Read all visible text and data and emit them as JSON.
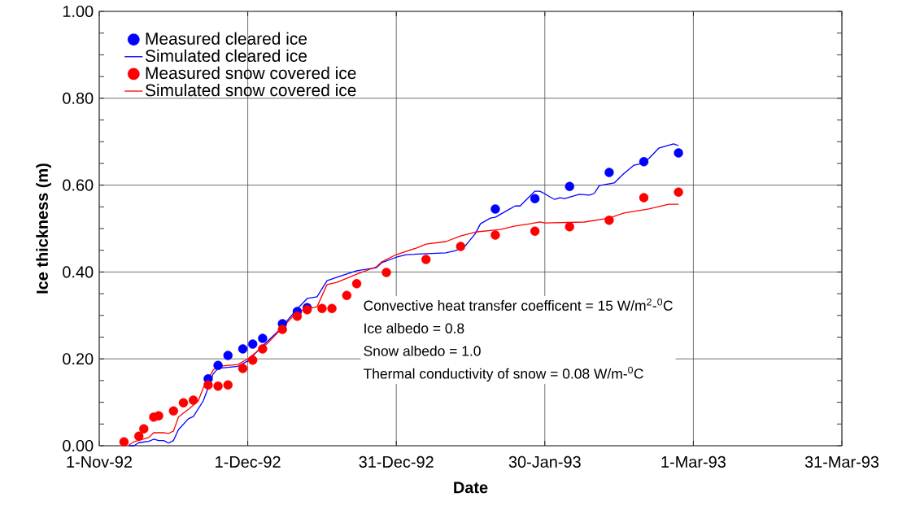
{
  "chart_data": {
    "type": "line",
    "xlabel": "Date",
    "ylabel": "Ice thickness (m)",
    "xlim": [
      "1992-11-01",
      "1993-03-31"
    ],
    "xticks": [
      {
        "value": "1992-11-01",
        "label": "1-Nov-92"
      },
      {
        "value": "1992-12-01",
        "label": "1-Dec-92"
      },
      {
        "value": "1992-12-31",
        "label": "31-Dec-92"
      },
      {
        "value": "1993-01-30",
        "label": "30-Jan-93"
      },
      {
        "value": "1993-03-01",
        "label": "1-Mar-93"
      },
      {
        "value": "1993-03-31",
        "label": "31-Mar-93"
      }
    ],
    "ylim": [
      0,
      1
    ],
    "yticks": [
      {
        "value": 0,
        "label": "0.00"
      },
      {
        "value": 0.05,
        "label": null
      },
      {
        "value": 0.1,
        "label": null
      },
      {
        "value": 0.15,
        "label": null
      },
      {
        "value": 0.2,
        "label": "0.20"
      },
      {
        "value": 0.25,
        "label": null
      },
      {
        "value": 0.3,
        "label": null
      },
      {
        "value": 0.35,
        "label": null
      },
      {
        "value": 0.4,
        "label": "0.40"
      },
      {
        "value": 0.45,
        "label": null
      },
      {
        "value": 0.5,
        "label": null
      },
      {
        "value": 0.55,
        "label": null
      },
      {
        "value": 0.6,
        "label": "0.60"
      },
      {
        "value": 0.65,
        "label": null
      },
      {
        "value": 0.7,
        "label": null
      },
      {
        "value": 0.75,
        "label": null
      },
      {
        "value": 0.8,
        "label": "0.80"
      },
      {
        "value": 0.85,
        "label": null
      },
      {
        "value": 0.9,
        "label": null
      },
      {
        "value": 0.95,
        "label": null
      },
      {
        "value": 1,
        "label": "1.00"
      }
    ],
    "grid": true,
    "legend": "top left",
    "annotations": [
      "Convective heat transfer coefficent = 15 W/m$^{2}$-$^{0}$C",
      "Ice albedo = 0.8",
      "Snow albedo = 1.0",
      "Thermal conductivity of snow = 0.08 W/m-$^{0}$C"
    ],
    "series": [
      {
        "name": "Measured cleared ice",
        "type": "scatter",
        "marker": "circle",
        "color": "#0000ff",
        "x": [
          "1992-11-23",
          "1992-11-25",
          "1992-11-27",
          "1992-11-30",
          "1992-12-02",
          "1992-12-04",
          "1992-12-08",
          "1992-12-11",
          "1992-12-13",
          "1993-01-20",
          "1993-01-28",
          "1993-02-04",
          "1993-02-12",
          "1993-02-19",
          "1993-02-26"
        ],
        "values": [
          0.154,
          0.185,
          0.208,
          0.223,
          0.234,
          0.247,
          0.281,
          0.309,
          0.318,
          0.545,
          0.569,
          0.597,
          0.629,
          0.654,
          0.674
        ]
      },
      {
        "name": "Simulated cleared ice",
        "type": "line",
        "color": "#0000ff",
        "x": [
          "1992-11-07",
          "1992-11-08",
          "1992-11-09",
          "1992-11-11",
          "1992-11-12",
          "1992-11-13",
          "1992-11-14",
          "1992-11-15",
          "1992-11-16",
          "1992-11-17",
          "1992-11-19",
          "1992-11-20",
          "1992-11-22",
          "1992-11-23",
          "1992-11-24",
          "1992-11-25",
          "1992-11-29",
          "1992-12-01",
          "1992-12-04",
          "1992-12-07",
          "1992-12-11",
          "1992-12-13",
          "1992-12-15",
          "1992-12-17",
          "1992-12-19",
          "1992-12-23",
          "1992-12-27",
          "1992-12-28",
          "1992-12-31",
          "1993-01-02",
          "1993-01-10",
          "1993-01-12",
          "1993-01-14",
          "1993-01-16",
          "1993-01-17",
          "1993-01-19",
          "1993-01-20",
          "1993-01-22",
          "1993-01-24",
          "1993-01-25",
          "1993-01-28",
          "1993-01-29",
          "1993-01-30",
          "1993-01-31",
          "1993-02-01",
          "1993-02-02",
          "1993-02-03",
          "1993-02-06",
          "1993-02-08",
          "1993-02-09",
          "1993-02-10",
          "1993-02-13",
          "1993-02-15",
          "1993-02-17",
          "1993-02-18",
          "1993-02-20",
          "1993-02-22",
          "1993-02-25",
          "1993-02-26"
        ],
        "values": [
          0.0,
          0.0,
          0.007,
          0.01,
          0.015,
          0.012,
          0.012,
          0.006,
          0.012,
          0.037,
          0.062,
          0.067,
          0.103,
          0.133,
          0.165,
          0.178,
          0.183,
          0.195,
          0.23,
          0.262,
          0.315,
          0.339,
          0.343,
          0.38,
          0.388,
          0.403,
          0.41,
          0.421,
          0.434,
          0.44,
          0.444,
          0.449,
          0.461,
          0.489,
          0.511,
          0.524,
          0.526,
          0.539,
          0.552,
          0.552,
          0.586,
          0.586,
          0.58,
          0.573,
          0.567,
          0.571,
          0.569,
          0.579,
          0.577,
          0.581,
          0.599,
          0.605,
          0.627,
          0.646,
          0.648,
          0.661,
          0.685,
          0.695,
          0.691
        ]
      },
      {
        "name": "Measured snow covered ice",
        "type": "scatter",
        "marker": "circle",
        "color": "#ff0000",
        "x": [
          "1992-11-06",
          "1992-11-09",
          "1992-11-10",
          "1992-11-12",
          "1992-11-13",
          "1992-11-16",
          "1992-11-18",
          "1992-11-20",
          "1992-11-23",
          "1992-11-25",
          "1992-11-27",
          "1992-11-30",
          "1992-12-02",
          "1992-12-04",
          "1992-12-08",
          "1992-12-11",
          "1992-12-13",
          "1992-12-16",
          "1992-12-18",
          "1992-12-21",
          "1992-12-23",
          "1992-12-29",
          "1993-01-06",
          "1993-01-13",
          "1993-01-20",
          "1993-01-28",
          "1993-02-04",
          "1993-02-12",
          "1993-02-19",
          "1993-02-26"
        ],
        "values": [
          0.009,
          0.022,
          0.039,
          0.066,
          0.069,
          0.08,
          0.099,
          0.105,
          0.14,
          0.137,
          0.14,
          0.178,
          0.197,
          0.223,
          0.268,
          0.298,
          0.313,
          0.316,
          0.316,
          0.346,
          0.373,
          0.399,
          0.429,
          0.459,
          0.485,
          0.494,
          0.504,
          0.519,
          0.571,
          0.584
        ]
      },
      {
        "name": "Simulated snow covered ice",
        "type": "line",
        "color": "#ff0000",
        "x": [
          "1992-11-07",
          "1992-11-08",
          "1992-11-11",
          "1992-11-12",
          "1992-11-14",
          "1992-11-15",
          "1992-11-16",
          "1992-11-17",
          "1992-11-19",
          "1992-11-21",
          "1992-11-22",
          "1992-11-24",
          "1992-11-25",
          "1992-11-29",
          "1992-12-01",
          "1992-12-05",
          "1992-12-08",
          "1992-12-11",
          "1992-12-15",
          "1992-12-17",
          "1992-12-19",
          "1992-12-23",
          "1992-12-27",
          "1992-12-28",
          "1992-12-31",
          "1993-01-04",
          "1993-01-06",
          "1993-01-10",
          "1993-01-13",
          "1993-01-16",
          "1993-01-21",
          "1993-01-24",
          "1993-01-27",
          "1993-01-29",
          "1993-01-30",
          "1993-02-07",
          "1993-02-12",
          "1993-02-15",
          "1993-02-20",
          "1993-02-24",
          "1993-02-26"
        ],
        "values": [
          0.002,
          0.009,
          0.019,
          0.03,
          0.03,
          0.028,
          0.034,
          0.066,
          0.084,
          0.103,
          0.133,
          0.174,
          0.183,
          0.187,
          0.2,
          0.236,
          0.272,
          0.309,
          0.32,
          0.371,
          0.376,
          0.395,
          0.412,
          0.423,
          0.44,
          0.455,
          0.464,
          0.47,
          0.483,
          0.492,
          0.498,
          0.506,
          0.511,
          0.515,
          0.513,
          0.515,
          0.524,
          0.536,
          0.545,
          0.556,
          0.556
        ]
      }
    ]
  }
}
